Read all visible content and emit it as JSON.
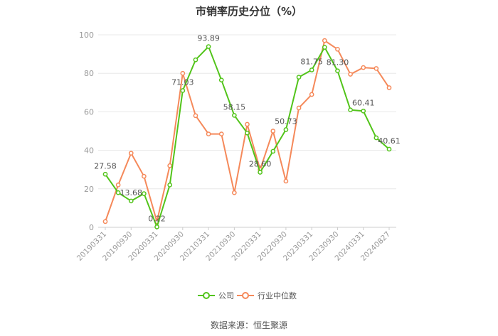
{
  "chart_data": {
    "type": "line",
    "title": "市销率历史分位（%）",
    "ylim": [
      0,
      100
    ],
    "yticks": [
      "0",
      "20",
      "40",
      "60",
      "80",
      "100"
    ],
    "x_tick_labels": [
      "20190331",
      "20190930",
      "20200331",
      "20200930",
      "20210331",
      "20210930",
      "20220331",
      "20220930",
      "20230331",
      "20230930",
      "20240331",
      "20240827"
    ],
    "x_tick_indices": [
      0,
      2,
      4,
      6,
      8,
      10,
      12,
      14,
      16,
      18,
      20,
      22
    ],
    "series": [
      {
        "name": "公司",
        "color": "#52c41a",
        "values": [
          27.58,
          18,
          13.68,
          17.5,
          0.22,
          22,
          71.03,
          87,
          93.89,
          76.5,
          58.15,
          49,
          28.6,
          39.5,
          50.73,
          78,
          81.75,
          93.5,
          81.3,
          61,
          60.41,
          46.5,
          40.61
        ],
        "point_labels": {
          "0": "27.58",
          "2": "13.68",
          "4": "0.22",
          "6": "71.03",
          "8": "93.89",
          "10": "58.15",
          "12": "28.60",
          "14": "50.73",
          "16": "81.75",
          "18": "81.30",
          "20": "60.41",
          "22": "40.61"
        }
      },
      {
        "name": "行业中位数",
        "color": "#f5895a",
        "values": [
          3,
          22,
          38.5,
          26.5,
          3,
          32,
          80,
          58,
          48.5,
          48.5,
          18,
          53.5,
          30,
          50,
          24,
          62,
          69,
          97,
          92.5,
          79.5,
          83,
          82.5,
          72.5
        ]
      }
    ],
    "grid": "horizontal",
    "legend": "bottom-center"
  },
  "source_text": "数据来源：恒生聚源"
}
